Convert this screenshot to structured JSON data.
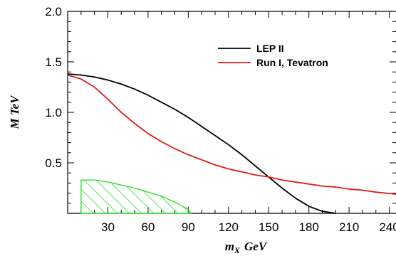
{
  "chart_data": {
    "type": "line",
    "xlabel": "m",
    "xlabel_sub": "X",
    "xlabel_unit": "GeV",
    "ylabel": "M  TeV",
    "xlim": [
      0,
      245
    ],
    "ylim": [
      0,
      2.0
    ],
    "x_ticks": [
      30,
      60,
      90,
      120,
      150,
      180,
      210,
      240
    ],
    "x_tick_labels": [
      "30",
      "60",
      "90",
      "120",
      "150",
      "180",
      "210",
      "240"
    ],
    "y_ticks": [
      0.5,
      1.0,
      1.5,
      2.0
    ],
    "y_tick_labels": [
      "0.5",
      "1.0",
      "1.5",
      "2.0"
    ],
    "legend_position": "top-right",
    "series": [
      {
        "name": "LEP II",
        "color": "#000000",
        "x": [
          0,
          10,
          20,
          30,
          40,
          50,
          60,
          70,
          80,
          90,
          100,
          110,
          120,
          130,
          140,
          150,
          160,
          170,
          180,
          190,
          200
        ],
        "y": [
          1.38,
          1.37,
          1.35,
          1.32,
          1.28,
          1.23,
          1.17,
          1.1,
          1.03,
          0.95,
          0.86,
          0.77,
          0.68,
          0.58,
          0.47,
          0.36,
          0.25,
          0.15,
          0.07,
          0.02,
          0.0
        ]
      },
      {
        "name": "Run I, Tevatron",
        "color": "#e31a1c",
        "x": [
          0,
          10,
          20,
          30,
          40,
          50,
          60,
          70,
          80,
          90,
          100,
          110,
          120,
          130,
          140,
          150,
          160,
          170,
          180,
          190,
          200,
          210,
          220,
          230,
          245
        ],
        "y": [
          1.37,
          1.33,
          1.25,
          1.13,
          1.0,
          0.89,
          0.79,
          0.71,
          0.64,
          0.58,
          0.53,
          0.48,
          0.44,
          0.41,
          0.38,
          0.36,
          0.33,
          0.31,
          0.29,
          0.27,
          0.26,
          0.24,
          0.23,
          0.21,
          0.19
        ]
      }
    ],
    "excluded_region": {
      "color": "#33dd33",
      "x": [
        10,
        20,
        30,
        40,
        50,
        60,
        70,
        80,
        90,
        92
      ],
      "y": [
        0.33,
        0.33,
        0.31,
        0.28,
        0.25,
        0.21,
        0.17,
        0.11,
        0.04,
        0.0
      ]
    }
  }
}
